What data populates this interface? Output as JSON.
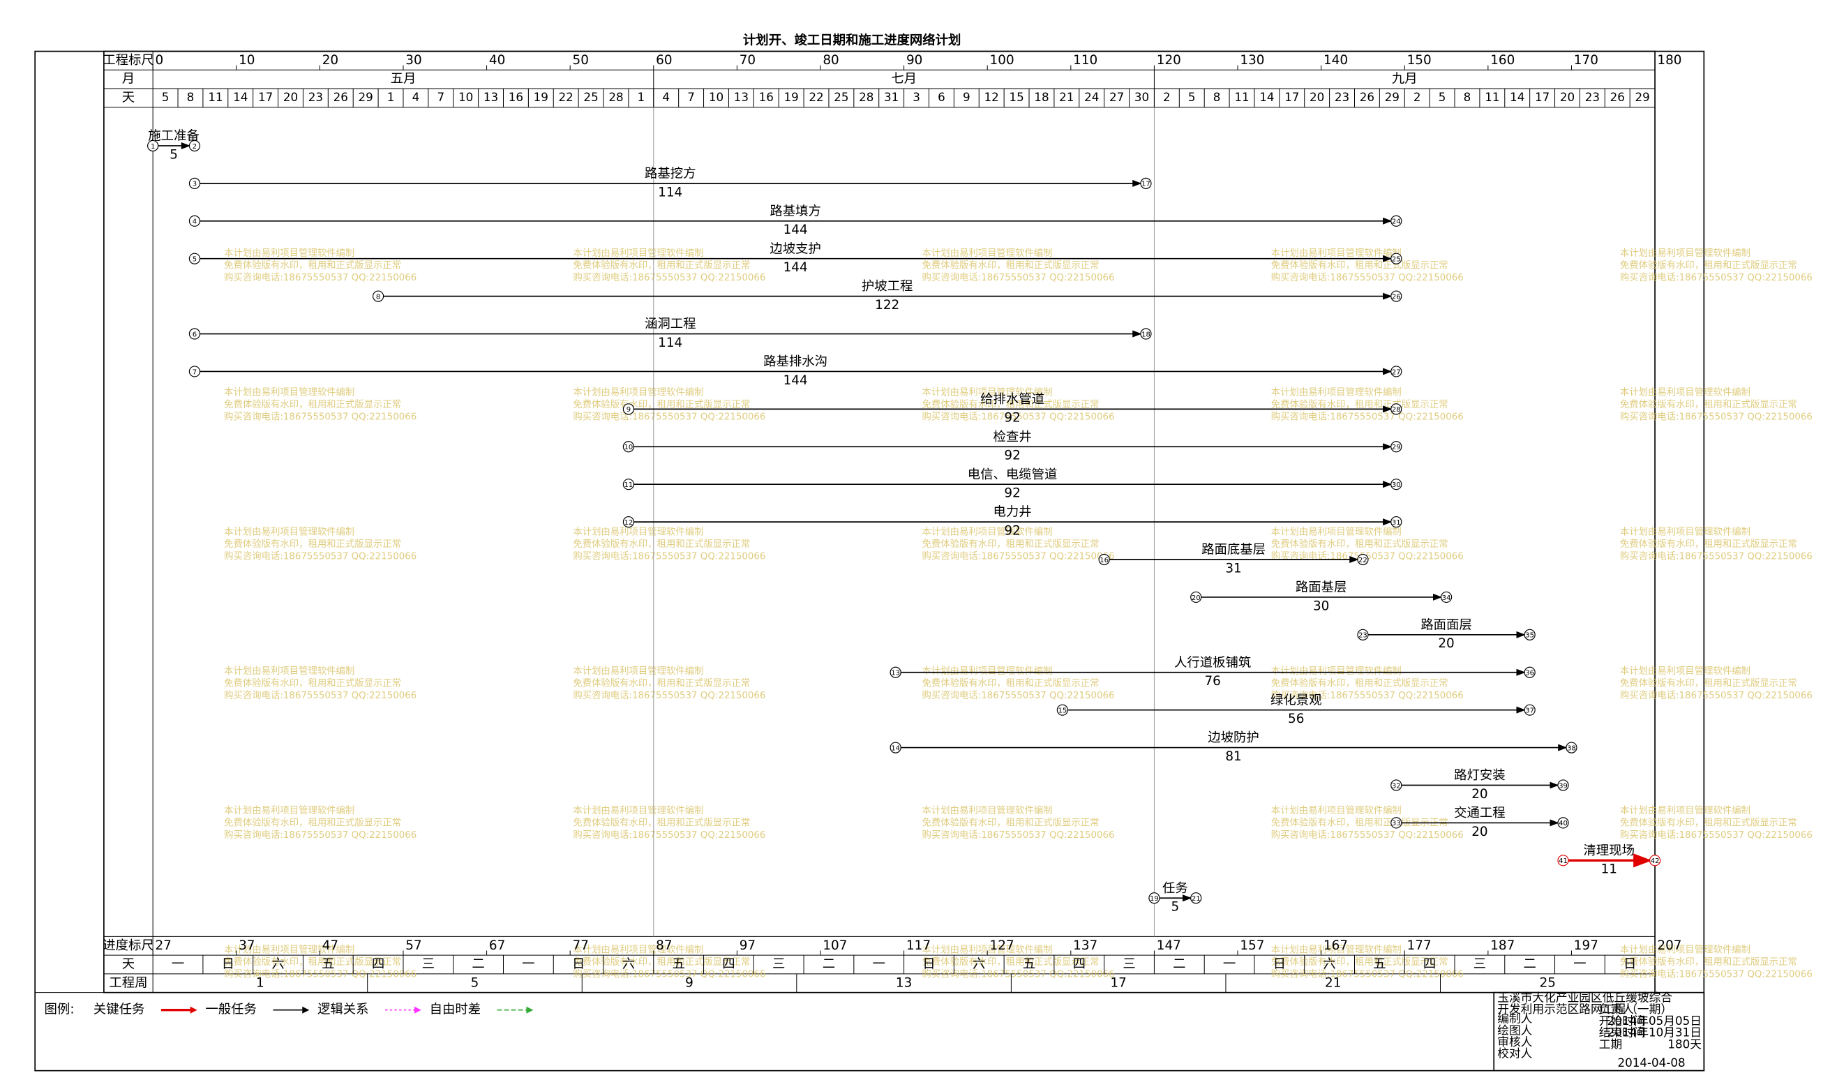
{
  "chart_data": {
    "type": "network",
    "title": "计划开、竣工日期和施工进度网络计划",
    "row_labels": {
      "ruler": "工程标尺",
      "month": "月",
      "day": "天",
      "progress": "进度标尺",
      "weekday": "天",
      "week": "工程周"
    },
    "xlim": [
      0,
      180
    ],
    "xticks": [
      0,
      10,
      20,
      30,
      40,
      50,
      60,
      70,
      80,
      90,
      100,
      110,
      120,
      130,
      140,
      150,
      160,
      170,
      180
    ],
    "months": [
      "五月",
      "七月",
      "九月"
    ],
    "days": [
      5,
      8,
      11,
      14,
      17,
      20,
      23,
      26,
      29,
      1,
      4,
      7,
      10,
      13,
      16,
      19,
      22,
      25,
      28,
      1,
      4,
      7,
      10,
      13,
      16,
      19,
      22,
      25,
      28,
      31,
      3,
      6,
      9,
      12,
      15,
      18,
      21,
      24,
      27,
      30,
      2,
      5,
      8,
      11,
      14,
      17,
      20,
      23,
      26,
      29,
      2,
      5,
      8,
      11,
      14,
      17,
      20,
      23,
      26,
      29
    ],
    "progress_lim": [
      27,
      207
    ],
    "progress_ticks": [
      27,
      37,
      47,
      57,
      67,
      77,
      87,
      97,
      107,
      117,
      127,
      137,
      147,
      157,
      167,
      177,
      187,
      197,
      207
    ],
    "weekdays": [
      "一",
      "日",
      "六",
      "五",
      "四",
      "三",
      "二",
      "一",
      "日",
      "六",
      "五",
      "四",
      "三",
      "二",
      "一",
      "日",
      "六",
      "五",
      "四",
      "三",
      "二",
      "一",
      "日",
      "六",
      "五",
      "四",
      "三",
      "二",
      "一",
      "日"
    ],
    "weeks": [
      1,
      5,
      9,
      13,
      17,
      21,
      25
    ],
    "colors": {
      "normal": "#000000",
      "critical": "#e00000"
    },
    "tasks": [
      {
        "name": "施工准备",
        "from": 1,
        "to": 2,
        "start": 0,
        "duration": 5,
        "critical": false
      },
      {
        "name": "路基挖方",
        "from": 3,
        "to": 17,
        "start": 5,
        "duration": 114,
        "critical": false
      },
      {
        "name": "路基填方",
        "from": 4,
        "to": 24,
        "start": 5,
        "duration": 144,
        "critical": false
      },
      {
        "name": "边坡支护",
        "from": 5,
        "to": 25,
        "start": 5,
        "duration": 144,
        "critical": false
      },
      {
        "name": "护坡工程",
        "from": 8,
        "to": 26,
        "start": 27,
        "duration": 122,
        "critical": false
      },
      {
        "name": "涵洞工程",
        "from": 6,
        "to": 18,
        "start": 5,
        "duration": 114,
        "critical": false
      },
      {
        "name": "路基排水沟",
        "from": 7,
        "to": 27,
        "start": 5,
        "duration": 144,
        "critical": false
      },
      {
        "name": "给排水管道",
        "from": 9,
        "to": 28,
        "start": 57,
        "duration": 92,
        "critical": false
      },
      {
        "name": "检查井",
        "from": 10,
        "to": 29,
        "start": 57,
        "duration": 92,
        "critical": false
      },
      {
        "name": "电信、电缆管道",
        "from": 11,
        "to": 30,
        "start": 57,
        "duration": 92,
        "critical": false
      },
      {
        "name": "电力井",
        "from": 12,
        "to": 31,
        "start": 57,
        "duration": 92,
        "critical": false
      },
      {
        "name": "路面底基层",
        "from": 16,
        "to": 22,
        "start": 114,
        "duration": 31,
        "critical": false
      },
      {
        "name": "路面基层",
        "from": 20,
        "to": 34,
        "start": 125,
        "duration": 30,
        "critical": false
      },
      {
        "name": "路面面层",
        "from": 23,
        "to": 35,
        "start": 145,
        "duration": 20,
        "critical": false
      },
      {
        "name": "人行道板铺筑",
        "from": 13,
        "to": 36,
        "start": 89,
        "duration": 76,
        "critical": false
      },
      {
        "name": "绿化景观",
        "from": 15,
        "to": 37,
        "start": 109,
        "duration": 56,
        "critical": false
      },
      {
        "name": "边坡防护",
        "from": 14,
        "to": 38,
        "start": 89,
        "duration": 81,
        "critical": false
      },
      {
        "name": "路灯安装",
        "from": 32,
        "to": 39,
        "start": 149,
        "duration": 20,
        "critical": false
      },
      {
        "name": "交通工程",
        "from": 33,
        "to": 40,
        "start": 149,
        "duration": 20,
        "critical": false
      },
      {
        "name": "清理现场",
        "from": 41,
        "to": 42,
        "start": 169,
        "duration": 11,
        "critical": true
      },
      {
        "name": "任务",
        "from": 19,
        "to": 21,
        "start": 120,
        "duration": 5,
        "critical": false
      }
    ],
    "legend": {
      "title": "图例:",
      "items": [
        {
          "name": "关键任务",
          "color": "#e00000",
          "style": "solid"
        },
        {
          "name": "一般任务",
          "color": "#000000",
          "style": "solid"
        },
        {
          "name": "逻辑关系",
          "color": "#ff33ff",
          "style": "dotted"
        },
        {
          "name": "自由时差",
          "color": "#33aa33",
          "style": "dashed"
        }
      ]
    },
    "info": {
      "project": [
        "玉溪市大化产业园区低丘缓坡综合",
        "开发利用示范区路网工程（一期）"
      ],
      "people": [
        "编制人",
        "绘图人",
        "审核人",
        "校对人"
      ],
      "fields": [
        {
          "label": "负责人"
        },
        {
          "label": "开始时间",
          "value": "2014年05月05日"
        },
        {
          "label": "结束时间",
          "value": "2014年10月31日"
        },
        {
          "label": "工期",
          "value": "180天"
        }
      ],
      "date": "2014-04-08"
    },
    "watermark": [
      "本计划由易利项目管理软件编制",
      "免费体验版有水印，租用和正式版显示正常",
      "购买咨询电话:18675550537 QQ:22150066"
    ]
  }
}
